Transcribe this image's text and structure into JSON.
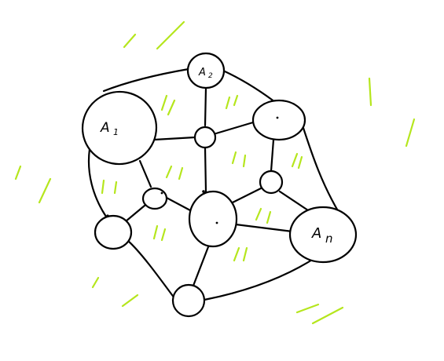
{
  "diagram": {
    "labels": {
      "a1": "A",
      "a1_sub": "1",
      "a2": "A",
      "a2_sub": "2",
      "an": "A",
      "an_sub": "n"
    },
    "colors": {
      "ink": "#000000",
      "hatch": "#b5e61d",
      "background": "#ffffff"
    }
  }
}
